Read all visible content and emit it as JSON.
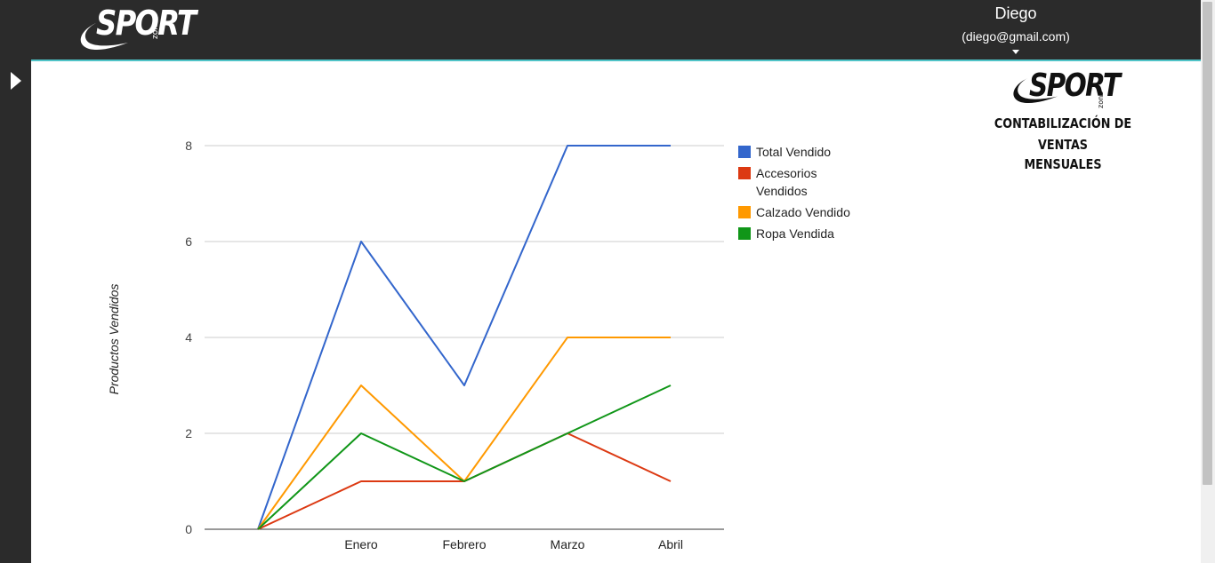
{
  "header": {
    "logo_text": "SPORT",
    "logo_sub": "zone",
    "user_name": "Diego",
    "user_email": "(diego@gmail.com)"
  },
  "colors": {
    "topbar": "#2b2b2b",
    "accent_line": "#4fc3c7",
    "series": [
      "#3366cc",
      "#dc3912",
      "#ff9900",
      "#109618"
    ]
  },
  "icons": {
    "sidebar_toggle": "play-triangle-icon",
    "user_menu": "caret-down-icon"
  },
  "brand": {
    "logo_text": "SPORT",
    "logo_sub": "zone",
    "title_line1": "Contabilización de ventas",
    "title_line2": "mensuales"
  },
  "chart_data": {
    "type": "line",
    "title": "",
    "xlabel": "",
    "ylabel": "Productos Vendidos",
    "categories": [
      "",
      "Enero",
      "Febrero",
      "Marzo",
      "Abril"
    ],
    "ylim": [
      0,
      8
    ],
    "yticks": [
      0,
      2,
      4,
      6,
      8
    ],
    "grid": true,
    "legend_position": "right",
    "series": [
      {
        "name": "Total Vendido",
        "values": [
          0,
          6,
          3,
          8,
          8
        ]
      },
      {
        "name": "Accesorios Vendidos",
        "values": [
          0,
          1,
          1,
          2,
          1
        ]
      },
      {
        "name": "Calzado Vendido",
        "values": [
          0,
          3,
          1,
          4,
          4
        ]
      },
      {
        "name": "Ropa Vendida",
        "values": [
          0,
          2,
          1,
          2,
          3
        ]
      }
    ]
  }
}
